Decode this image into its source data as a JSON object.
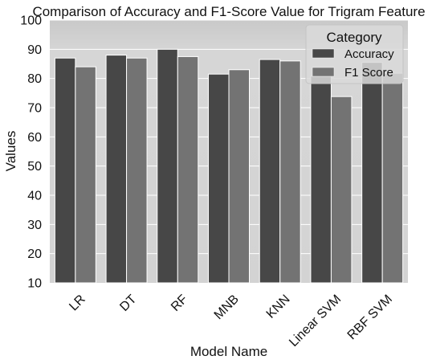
{
  "chart_data": {
    "type": "bar",
    "title": "Comparison of Accuracy and F1-Score Value for Trigram Feature",
    "xlabel": "Model Name",
    "ylabel": "Values",
    "ylim": [
      10,
      100
    ],
    "yticks": [
      10,
      20,
      30,
      40,
      50,
      60,
      70,
      80,
      90,
      100
    ],
    "categories": [
      "LR",
      "DT",
      "RF",
      "MNB",
      "KNN",
      "Linear SVM",
      "RBF SVM"
    ],
    "series": [
      {
        "name": "Accuracy",
        "values": [
          87,
          88,
          90,
          81.5,
          86.5,
          80.8,
          85.5
        ],
        "color": "#474747"
      },
      {
        "name": "F1 Score",
        "values": [
          84,
          87,
          87.5,
          83,
          86,
          73.8,
          81.8
        ],
        "color": "#737373"
      }
    ],
    "legend": {
      "title": "Category",
      "position": "top-right"
    },
    "grid": true,
    "background": "#d3d3d3",
    "grid_color": "#ffffff"
  }
}
